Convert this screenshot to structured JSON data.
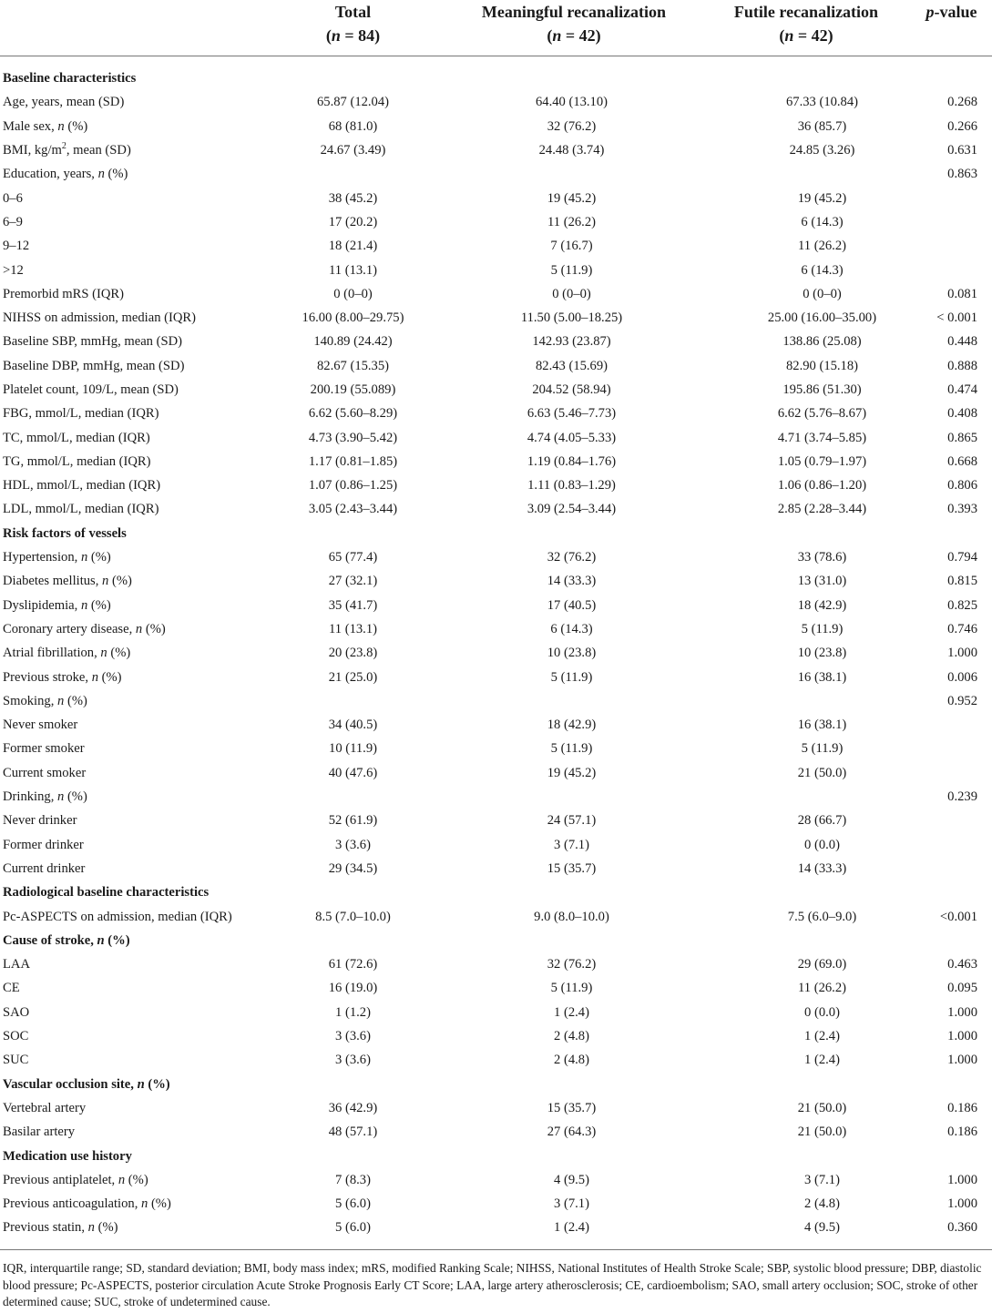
{
  "header": {
    "label_col": "",
    "columns": [
      {
        "title": "Total",
        "n": "(n = 84)"
      },
      {
        "title": "Meaningful recanalization",
        "n": "(n = 42)"
      },
      {
        "title": "Futile recanalization",
        "n": "(n = 42)"
      },
      {
        "title": "p-value",
        "n": ""
      }
    ]
  },
  "rows": [
    {
      "type": "section",
      "label": "Baseline characteristics"
    },
    {
      "label": "Age, years, mean (SD)",
      "total": "65.87 (12.04)",
      "meaningful": "64.40 (13.10)",
      "futile": "67.33 (10.84)",
      "p": "0.268"
    },
    {
      "label": "Male sex, n (%)",
      "total": "68 (81.0)",
      "meaningful": "32 (76.2)",
      "futile": "36 (85.7)",
      "p": "0.266"
    },
    {
      "label": "BMI, kg/m², mean (SD)",
      "total": "24.67 (3.49)",
      "meaningful": "24.48 (3.74)",
      "futile": "24.85 (3.26)",
      "p": "0.631"
    },
    {
      "label": "Education, years, n (%)",
      "total": "",
      "meaningful": "",
      "futile": "",
      "p": "0.863"
    },
    {
      "label": "0–6",
      "total": "38 (45.2)",
      "meaningful": "19 (45.2)",
      "futile": "19 (45.2)",
      "p": ""
    },
    {
      "label": "6–9",
      "total": "17 (20.2)",
      "meaningful": "11 (26.2)",
      "futile": "6 (14.3)",
      "p": ""
    },
    {
      "label": "9–12",
      "total": "18 (21.4)",
      "meaningful": "7 (16.7)",
      "futile": "11 (26.2)",
      "p": ""
    },
    {
      "label": ">12",
      "total": "11 (13.1)",
      "meaningful": "5 (11.9)",
      "futile": "6 (14.3)",
      "p": ""
    },
    {
      "label": "Premorbid mRS (IQR)",
      "total": "0 (0–0)",
      "meaningful": "0 (0–0)",
      "futile": "0 (0–0)",
      "p": "0.081"
    },
    {
      "label": "NIHSS on admission, median (IQR)",
      "total": "16.00 (8.00–29.75)",
      "meaningful": "11.50 (5.00–18.25)",
      "futile": "25.00 (16.00–35.00)",
      "p": "< 0.001"
    },
    {
      "label": "Baseline SBP, mmHg, mean (SD)",
      "total": "140.89 (24.42)",
      "meaningful": "142.93 (23.87)",
      "futile": "138.86 (25.08)",
      "p": "0.448"
    },
    {
      "label": "Baseline DBP, mmHg, mean (SD)",
      "total": "82.67 (15.35)",
      "meaningful": "82.43 (15.69)",
      "futile": "82.90 (15.18)",
      "p": "0.888"
    },
    {
      "label": "Platelet count, 109/L, mean (SD)",
      "total": "200.19 (55.089)",
      "meaningful": "204.52 (58.94)",
      "futile": "195.86 (51.30)",
      "p": "0.474"
    },
    {
      "label": "FBG, mmol/L, median (IQR)",
      "total": "6.62 (5.60–8.29)",
      "meaningful": "6.63 (5.46–7.73)",
      "futile": "6.62 (5.76–8.67)",
      "p": "0.408"
    },
    {
      "label": "TC, mmol/L, median (IQR)",
      "total": "4.73 (3.90–5.42)",
      "meaningful": "4.74 (4.05–5.33)",
      "futile": "4.71 (3.74–5.85)",
      "p": "0.865"
    },
    {
      "label": "TG, mmol/L, median (IQR)",
      "total": "1.17 (0.81–1.85)",
      "meaningful": "1.19 (0.84–1.76)",
      "futile": "1.05 (0.79–1.97)",
      "p": "0.668"
    },
    {
      "label": "HDL, mmol/L, median (IQR)",
      "total": "1.07 (0.86–1.25)",
      "meaningful": "1.11 (0.83–1.29)",
      "futile": "1.06 (0.86–1.20)",
      "p": "0.806"
    },
    {
      "label": "LDL, mmol/L, median (IQR)",
      "total": "3.05 (2.43–3.44)",
      "meaningful": "3.09 (2.54–3.44)",
      "futile": "2.85 (2.28–3.44)",
      "p": "0.393"
    },
    {
      "type": "section",
      "label": "Risk factors of vessels"
    },
    {
      "label": "Hypertension, n (%)",
      "total": "65 (77.4)",
      "meaningful": "32 (76.2)",
      "futile": "33 (78.6)",
      "p": "0.794"
    },
    {
      "label": "Diabetes mellitus, n (%)",
      "total": "27 (32.1)",
      "meaningful": "14 (33.3)",
      "futile": "13 (31.0)",
      "p": "0.815"
    },
    {
      "label": "Dyslipidemia, n (%)",
      "total": "35 (41.7)",
      "meaningful": "17 (40.5)",
      "futile": "18 (42.9)",
      "p": "0.825"
    },
    {
      "label": "Coronary artery disease, n (%)",
      "total": "11 (13.1)",
      "meaningful": "6 (14.3)",
      "futile": "5 (11.9)",
      "p": "0.746"
    },
    {
      "label": "Atrial fibrillation, n (%)",
      "total": "20 (23.8)",
      "meaningful": "10 (23.8)",
      "futile": "10 (23.8)",
      "p": "1.000"
    },
    {
      "label": "Previous stroke, n (%)",
      "total": "21 (25.0)",
      "meaningful": "5 (11.9)",
      "futile": "16 (38.1)",
      "p": "0.006"
    },
    {
      "label": "Smoking, n (%)",
      "total": "",
      "meaningful": "",
      "futile": "",
      "p": "0.952"
    },
    {
      "label": "Never smoker",
      "total": "34 (40.5)",
      "meaningful": "18 (42.9)",
      "futile": "16 (38.1)",
      "p": ""
    },
    {
      "label": "Former smoker",
      "total": "10 (11.9)",
      "meaningful": "5 (11.9)",
      "futile": "5 (11.9)",
      "p": ""
    },
    {
      "label": "Current smoker",
      "total": "40 (47.6)",
      "meaningful": "19 (45.2)",
      "futile": "21 (50.0)",
      "p": ""
    },
    {
      "label": "Drinking, n (%)",
      "total": "",
      "meaningful": "",
      "futile": "",
      "p": "0.239"
    },
    {
      "label": "Never drinker",
      "total": "52 (61.9)",
      "meaningful": "24 (57.1)",
      "futile": "28 (66.7)",
      "p": ""
    },
    {
      "label": "Former drinker",
      "total": "3 (3.6)",
      "meaningful": "3 (7.1)",
      "futile": "0 (0.0)",
      "p": ""
    },
    {
      "label": "Current drinker",
      "total": "29 (34.5)",
      "meaningful": "15 (35.7)",
      "futile": "14 (33.3)",
      "p": ""
    },
    {
      "type": "section",
      "label": "Radiological baseline characteristics"
    },
    {
      "label": "Pc-ASPECTS on admission, median (IQR)",
      "total": "8.5 (7.0–10.0)",
      "meaningful": "9.0 (8.0–10.0)",
      "futile": "7.5 (6.0–9.0)",
      "p": "<0.001"
    },
    {
      "type": "section",
      "label": "Cause of stroke, n (%)"
    },
    {
      "label": "LAA",
      "total": "61 (72.6)",
      "meaningful": "32 (76.2)",
      "futile": "29 (69.0)",
      "p": "0.463"
    },
    {
      "label": "CE",
      "total": "16 (19.0)",
      "meaningful": "5 (11.9)",
      "futile": "11 (26.2)",
      "p": "0.095"
    },
    {
      "label": "SAO",
      "total": "1 (1.2)",
      "meaningful": "1 (2.4)",
      "futile": "0 (0.0)",
      "p": "1.000"
    },
    {
      "label": "SOC",
      "total": "3 (3.6)",
      "meaningful": "2 (4.8)",
      "futile": "1 (2.4)",
      "p": "1.000"
    },
    {
      "label": "SUC",
      "total": "3 (3.6)",
      "meaningful": "2 (4.8)",
      "futile": "1 (2.4)",
      "p": "1.000"
    },
    {
      "type": "section",
      "label": "Vascular occlusion site, n (%)"
    },
    {
      "label": "Vertebral artery",
      "total": "36 (42.9)",
      "meaningful": "15 (35.7)",
      "futile": "21 (50.0)",
      "p": "0.186"
    },
    {
      "label": "Basilar artery",
      "total": "48 (57.1)",
      "meaningful": "27 (64.3)",
      "futile": "21 (50.0)",
      "p": "0.186"
    },
    {
      "type": "section",
      "label": "Medication use history"
    },
    {
      "label": "Previous antiplatelet, n (%)",
      "total": "7 (8.3)",
      "meaningful": "4 (9.5)",
      "futile": "3 (7.1)",
      "p": "1.000"
    },
    {
      "label": "Previous anticoagulation, n (%)",
      "total": "5 (6.0)",
      "meaningful": "3 (7.1)",
      "futile": "2 (4.8)",
      "p": "1.000"
    },
    {
      "label": "Previous statin, n (%)",
      "total": "5 (6.0)",
      "meaningful": "1 (2.4)",
      "futile": "4 (9.5)",
      "p": "0.360"
    }
  ],
  "footnote": "IQR, interquartile range; SD, standard deviation; BMI, body mass index; mRS, modified Ranking Scale; NIHSS, National Institutes of Health Stroke Scale; SBP, systolic blood pressure; DBP, diastolic blood pressure; Pc-ASPECTS, posterior circulation Acute Stroke Prognosis Early CT Score; LAA, large artery atherosclerosis; CE, cardioembolism; SAO, small artery occlusion; SOC, stroke of other determined cause; SUC, stroke of undetermined cause."
}
